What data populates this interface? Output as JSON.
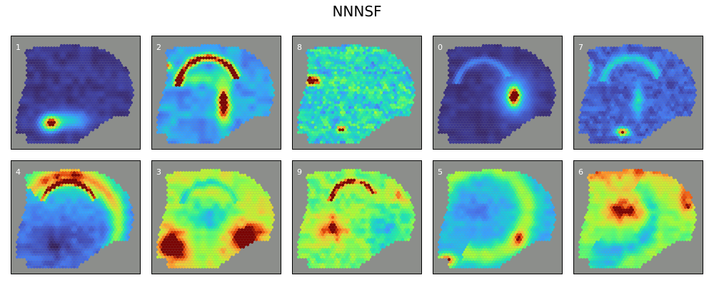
{
  "figure": {
    "title": "NNNSF",
    "background_color": "#8c8e8b",
    "colormap": "turbo",
    "panels": [
      {
        "label": "1",
        "pattern": "low-with-ventral-hotspot"
      },
      {
        "label": "2",
        "pattern": "hippocampus-and-fiber-tract-high"
      },
      {
        "label": "8",
        "pattern": "speckled-mid"
      },
      {
        "label": "0",
        "pattern": "low-with-central-hotspot"
      },
      {
        "label": "7",
        "pattern": "low-with-ventral-edge"
      },
      {
        "label": "4",
        "pattern": "cortex-band-mid"
      },
      {
        "label": "3",
        "pattern": "broad-high"
      },
      {
        "label": "9",
        "pattern": "mixed-high-patches"
      },
      {
        "label": "5",
        "pattern": "outer-band-mid"
      },
      {
        "label": "6",
        "pattern": "dorsal-high-ring"
      }
    ]
  }
}
